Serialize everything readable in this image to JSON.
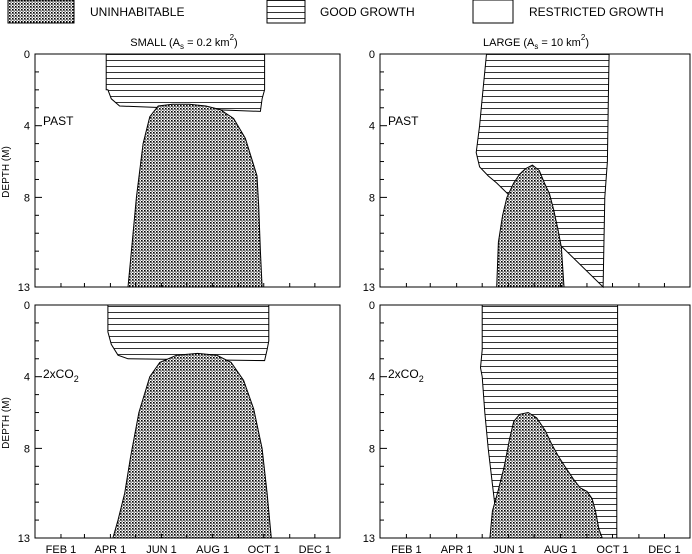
{
  "legend": {
    "uninhabitable": "UNINHABITABLE",
    "good_growth": "GOOD GROWTH",
    "restricted_growth": "RESTRICTED GROWTH"
  },
  "ylabel": "DEPTH (M)",
  "colors": {
    "ink": "#000000",
    "stipple": "#8c8c8c",
    "background": "#ffffff"
  },
  "chart_data": [
    {
      "type": "area",
      "title": "SMALL (A_s = 0.2 km²)",
      "title_main": "SMALL (A",
      "title_sub": "s",
      "title_mid": " = 0.2 km",
      "title_sup": "2",
      "title_end": ")",
      "panel_label": "PAST",
      "panel_label_sub": "",
      "xlabel": "",
      "ylabel": "DEPTH (M)",
      "x_unit": "day of year",
      "xlim": [
        1,
        365
      ],
      "ylim": [
        13,
        0
      ],
      "xticks": [],
      "xticklabels": [],
      "yticks": [
        0,
        4,
        8,
        13
      ],
      "yticklabels": [
        "0",
        "4",
        "8",
        "13"
      ],
      "good_growth": {
        "start": [
          [
            86,
            0
          ],
          [
            86,
            2
          ],
          [
            88,
            2
          ],
          [
            92,
            2.5
          ],
          [
            102,
            2.9
          ]
        ],
        "end": [
          [
            275,
            0
          ],
          [
            275,
            2
          ],
          [
            272,
            2.5
          ],
          [
            270,
            3.2
          ]
        ]
      },
      "uninhabitable": [
        [
          112,
          13
        ],
        [
          116,
          11
        ],
        [
          122,
          8
        ],
        [
          130,
          5
        ],
        [
          138,
          3.5
        ],
        [
          148,
          2.9
        ],
        [
          165,
          2.8
        ],
        [
          185,
          2.8
        ],
        [
          205,
          2.9
        ],
        [
          222,
          3.1
        ],
        [
          238,
          3.6
        ],
        [
          252,
          4.7
        ],
        [
          260,
          5.9
        ],
        [
          266,
          6.8
        ],
        [
          268,
          8.5
        ],
        [
          270,
          11
        ],
        [
          272,
          13
        ]
      ]
    },
    {
      "type": "area",
      "title": "LARGE (A_s = 10 km²)",
      "title_main": "LARGE (A",
      "title_sub": "s",
      "title_mid": " = 10 km",
      "title_sup": "2",
      "title_end": ")",
      "panel_label": "PAST",
      "panel_label_sub": "",
      "xlabel": "",
      "ylabel": "",
      "x_unit": "day of year",
      "xlim": [
        1,
        365
      ],
      "ylim": [
        13,
        0
      ],
      "xticks": [],
      "xticklabels": [],
      "yticks": [
        0,
        4,
        8,
        13
      ],
      "yticklabels": [
        "0",
        "4",
        "8",
        "13"
      ],
      "good_growth": {
        "start": [
          [
            126,
            0
          ],
          [
            122,
            2
          ],
          [
            118,
            4
          ],
          [
            114,
            5.5
          ],
          [
            118,
            6.3
          ],
          [
            128,
            6.8
          ],
          [
            138,
            7.2
          ]
        ],
        "end": [
          [
            270,
            0
          ],
          [
            269,
            3
          ],
          [
            268,
            6
          ],
          [
            265,
            8
          ],
          [
            263,
            13
          ]
        ]
      },
      "uninhabitable": [
        [
          138,
          13
        ],
        [
          140,
          10.5
        ],
        [
          145,
          9
        ],
        [
          150,
          8
        ],
        [
          158,
          7.2
        ],
        [
          165,
          6.7
        ],
        [
          172,
          6.4
        ],
        [
          180,
          6.2
        ],
        [
          188,
          6.5
        ],
        [
          194,
          7.2
        ],
        [
          200,
          7.8
        ],
        [
          205,
          8.7
        ],
        [
          210,
          9.8
        ],
        [
          214,
          10.8
        ],
        [
          217,
          13
        ]
      ]
    },
    {
      "type": "area",
      "title": "",
      "title_main": "",
      "title_sub": "",
      "title_mid": "",
      "title_sup": "",
      "title_end": "",
      "panel_label": "2xCO",
      "panel_label_sub": "2",
      "xlabel": "",
      "ylabel": "DEPTH (M)",
      "x_unit": "day of year",
      "xlim": [
        1,
        365
      ],
      "ylim": [
        13,
        0
      ],
      "xticks": [
        32,
        91,
        152,
        213,
        274,
        335
      ],
      "xticklabels": [
        "FEB 1",
        "APR 1",
        "JUN 1",
        "AUG 1",
        "OCT 1",
        "DEC 1"
      ],
      "yticks": [
        0,
        4,
        8,
        13
      ],
      "yticklabels": [
        "0",
        "4",
        "8",
        "13"
      ],
      "good_growth": {
        "start": [
          [
            88,
            0
          ],
          [
            88,
            1.5
          ],
          [
            92,
            2.2
          ],
          [
            100,
            2.8
          ],
          [
            112,
            3.0
          ]
        ],
        "end": [
          [
            280,
            0
          ],
          [
            280,
            2
          ],
          [
            278,
            2.5
          ],
          [
            275,
            3.1
          ]
        ]
      },
      "uninhabitable": [
        [
          94,
          13
        ],
        [
          100,
          12
        ],
        [
          108,
          10.5
        ],
        [
          115,
          8.5
        ],
        [
          125,
          6
        ],
        [
          138,
          4
        ],
        [
          150,
          3.2
        ],
        [
          170,
          2.8
        ],
        [
          195,
          2.7
        ],
        [
          218,
          2.8
        ],
        [
          235,
          3.2
        ],
        [
          250,
          4.2
        ],
        [
          262,
          5.8
        ],
        [
          272,
          8
        ],
        [
          278,
          10.5
        ],
        [
          283,
          13
        ]
      ]
    },
    {
      "type": "area",
      "title": "",
      "title_main": "",
      "title_sub": "",
      "title_mid": "",
      "title_sup": "",
      "title_end": "",
      "panel_label": "2xCO",
      "panel_label_sub": "2",
      "xlabel": "",
      "ylabel": "",
      "x_unit": "day of year",
      "xlim": [
        1,
        365
      ],
      "ylim": [
        13,
        0
      ],
      "xticks": [
        32,
        91,
        152,
        213,
        274,
        335
      ],
      "xticklabels": [
        "FEB 1",
        "APR 1",
        "JUN 1",
        "AUG 1",
        "OCT 1",
        "DEC 1"
      ],
      "yticks": [
        0,
        4,
        8,
        13
      ],
      "yticklabels": [
        "0",
        "4",
        "8",
        "13"
      ],
      "good_growth": {
        "start": [
          [
            121,
            0
          ],
          [
            121,
            2.5
          ],
          [
            119,
            3.5
          ],
          [
            121,
            4
          ],
          [
            124,
            6
          ],
          [
            128,
            8
          ],
          [
            133,
            10
          ],
          [
            138,
            12
          ],
          [
            140,
            13
          ]
        ],
        "end": [
          [
            280,
            0
          ],
          [
            280,
            6
          ],
          [
            279,
            10
          ],
          [
            279,
            13
          ]
        ]
      },
      "uninhabitable": [
        [
          130,
          13
        ],
        [
          133,
          11.5
        ],
        [
          140,
          10.3
        ],
        [
          147,
          9
        ],
        [
          153,
          7.5
        ],
        [
          158,
          6.5
        ],
        [
          165,
          6.1
        ],
        [
          175,
          6
        ],
        [
          185,
          6.3
        ],
        [
          195,
          7
        ],
        [
          203,
          7.8
        ],
        [
          210,
          8.4
        ],
        [
          218,
          9
        ],
        [
          228,
          9.7
        ],
        [
          236,
          10.2
        ],
        [
          244,
          10.4
        ],
        [
          250,
          10.8
        ],
        [
          254,
          11.5
        ],
        [
          258,
          12.5
        ],
        [
          262,
          13
        ]
      ]
    }
  ]
}
